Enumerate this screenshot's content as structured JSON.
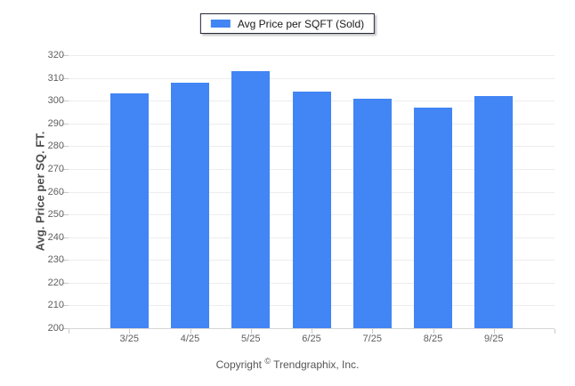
{
  "legend": {
    "label": "Avg Price per SQFT (Sold)"
  },
  "footer": {
    "pre": "Copyright",
    "symbol": "©",
    "post": "Trendgraphix, Inc."
  },
  "colors": {
    "bar": "#4285F4",
    "gridline": "#ededed",
    "axis_line": "#d6d6d6",
    "tick": "#c9c9c9",
    "tick_label": "#5e5e5e",
    "axis_title": "#4d4d4d",
    "legend_border": "#232936",
    "footer_text": "#565656"
  },
  "chart_data": {
    "type": "bar",
    "categories": [
      "3/25",
      "4/25",
      "5/25",
      "6/25",
      "7/25",
      "8/25",
      "9/25"
    ],
    "series": [
      {
        "name": "Avg Price per SQFT (Sold)",
        "values": [
          303,
          308,
          313,
          304,
          301,
          297,
          302
        ]
      }
    ],
    "title": "",
    "xlabel": "",
    "ylabel": "Avg. Price per SQ. FT.",
    "ylim": [
      200,
      320
    ],
    "yticks": [
      200,
      210,
      220,
      230,
      240,
      250,
      260,
      270,
      280,
      290,
      300,
      310,
      320
    ],
    "grid": true,
    "legend_position": "top-center"
  }
}
